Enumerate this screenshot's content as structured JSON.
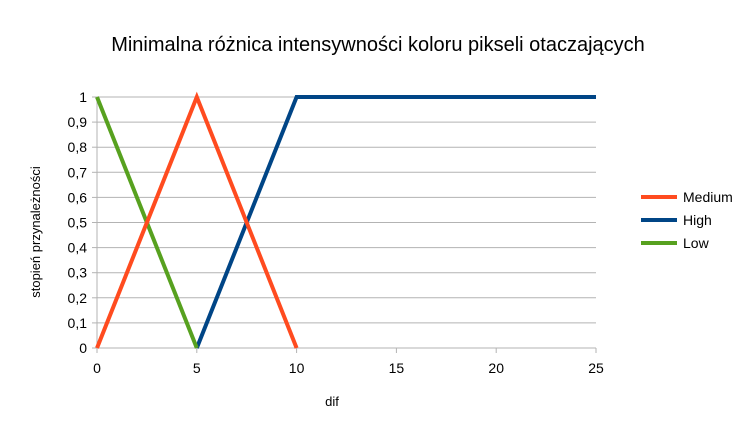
{
  "chart_data": {
    "type": "line",
    "title": "Minimalna różnica intensywności koloru pikseli otaczających",
    "xlabel": "dif",
    "ylabel": "stopień przynależności",
    "xlim": [
      0,
      25
    ],
    "ylim": [
      0,
      1
    ],
    "x_ticks": [
      {
        "value": 0,
        "label": "0"
      },
      {
        "value": 5,
        "label": "5"
      },
      {
        "value": 10,
        "label": "10"
      },
      {
        "value": 15,
        "label": "15"
      },
      {
        "value": 20,
        "label": "20"
      },
      {
        "value": 25,
        "label": "25"
      }
    ],
    "y_ticks": [
      {
        "value": 0,
        "label": "0"
      },
      {
        "value": 0.1,
        "label": "0,1"
      },
      {
        "value": 0.2,
        "label": "0,2"
      },
      {
        "value": 0.3,
        "label": "0,3"
      },
      {
        "value": 0.4,
        "label": "0,4"
      },
      {
        "value": 0.5,
        "label": "0,5"
      },
      {
        "value": 0.6,
        "label": "0,6"
      },
      {
        "value": 0.7,
        "label": "0,7"
      },
      {
        "value": 0.8,
        "label": "0,8"
      },
      {
        "value": 0.9,
        "label": "0,9"
      },
      {
        "value": 1,
        "label": "1"
      }
    ],
    "grid": "horizontal",
    "legend_position": "right",
    "series": [
      {
        "name": "Medium",
        "color": "#ff4b1f",
        "points": [
          [
            0,
            0
          ],
          [
            5,
            1
          ],
          [
            10,
            0
          ]
        ]
      },
      {
        "name": "High",
        "color": "#004586",
        "points": [
          [
            5,
            0
          ],
          [
            10,
            1
          ],
          [
            25,
            1
          ]
        ]
      },
      {
        "name": "Low",
        "color": "#57a11f",
        "points": [
          [
            0,
            1
          ],
          [
            5,
            0
          ]
        ]
      }
    ]
  }
}
